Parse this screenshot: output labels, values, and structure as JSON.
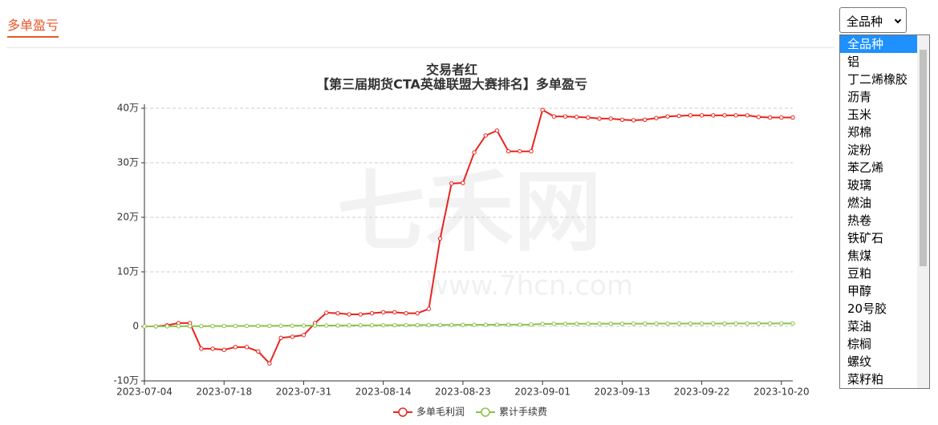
{
  "header": {
    "tab": "多单盈亏"
  },
  "selector": {
    "selected": "全品种",
    "options": [
      "全品种",
      "铝",
      "丁二烯橡胶",
      "沥青",
      "玉米",
      "郑棉",
      "淀粉",
      "苯乙烯",
      "玻璃",
      "燃油",
      "热卷",
      "铁矿石",
      "焦煤",
      "豆粕",
      "甲醇",
      "20号胶",
      "菜油",
      "棕榈",
      "螺纹",
      "菜籽粕"
    ]
  },
  "watermark": [
    "七禾网",
    "www.7hcn.com"
  ],
  "chart_data": {
    "type": "line",
    "title": "交易者红",
    "subtitle": "【第三届期货CTA英雄联盟大赛排名】多单盈亏",
    "categories": [
      "2023-07-04",
      null,
      null,
      null,
      null,
      null,
      null,
      "2023-07-18",
      null,
      null,
      null,
      null,
      null,
      null,
      "2023-07-31",
      null,
      null,
      null,
      null,
      null,
      null,
      "2023-08-14",
      null,
      null,
      null,
      null,
      null,
      null,
      "2023-08-23",
      null,
      null,
      null,
      null,
      null,
      null,
      "2023-09-01",
      null,
      null,
      null,
      null,
      null,
      null,
      "2023-09-13",
      null,
      null,
      null,
      null,
      null,
      null,
      "2023-09-22",
      null,
      null,
      null,
      null,
      null,
      null,
      "2023-10-20",
      null
    ],
    "series": [
      {
        "name": "多单毛利润",
        "color": "#e8251e",
        "values": [
          0,
          0,
          0.2,
          0.6,
          0.6,
          -4.1,
          -4.1,
          -4.3,
          -3.8,
          -3.8,
          -4.6,
          -6.8,
          -2.1,
          -1.9,
          -1.6,
          0.6,
          2.5,
          2.4,
          2.2,
          2.2,
          2.4,
          2.6,
          2.6,
          2.4,
          2.4,
          3.2,
          16.1,
          26.2,
          26.3,
          31.9,
          35,
          35.9,
          32.1,
          32.1,
          32.1,
          39.7,
          38.5,
          38.5,
          38.4,
          38.3,
          38.1,
          38.1,
          37.9,
          37.8,
          37.9,
          38.2,
          38.5,
          38.6,
          38.7,
          38.7,
          38.7,
          38.7,
          38.7,
          38.7,
          38.4,
          38.3,
          38.3,
          38.3
        ]
      },
      {
        "name": "累计手续费",
        "color": "#8bc34a",
        "values": [
          0,
          0,
          0.01,
          0.02,
          0.03,
          0.04,
          0.05,
          0.06,
          0.07,
          0.08,
          0.09,
          0.1,
          0.11,
          0.12,
          0.13,
          0.14,
          0.15,
          0.16,
          0.17,
          0.18,
          0.19,
          0.2,
          0.21,
          0.22,
          0.23,
          0.24,
          0.25,
          0.26,
          0.27,
          0.28,
          0.29,
          0.3,
          0.31,
          0.32,
          0.33,
          0.45,
          0.46,
          0.47,
          0.47,
          0.48,
          0.48,
          0.49,
          0.49,
          0.5,
          0.5,
          0.5,
          0.51,
          0.51,
          0.51,
          0.52,
          0.52,
          0.52,
          0.53,
          0.53,
          0.53,
          0.54,
          0.54,
          0.54
        ]
      }
    ],
    "ylim": [
      -10,
      40
    ],
    "yticks": [
      {
        "value": -10,
        "label": "-10万"
      },
      0,
      {
        "value": 10,
        "label": "10万"
      },
      {
        "value": 20,
        "label": "20万"
      },
      {
        "value": 30,
        "label": "30万"
      },
      {
        "value": 40,
        "label": "40万"
      }
    ],
    "grid": true
  }
}
